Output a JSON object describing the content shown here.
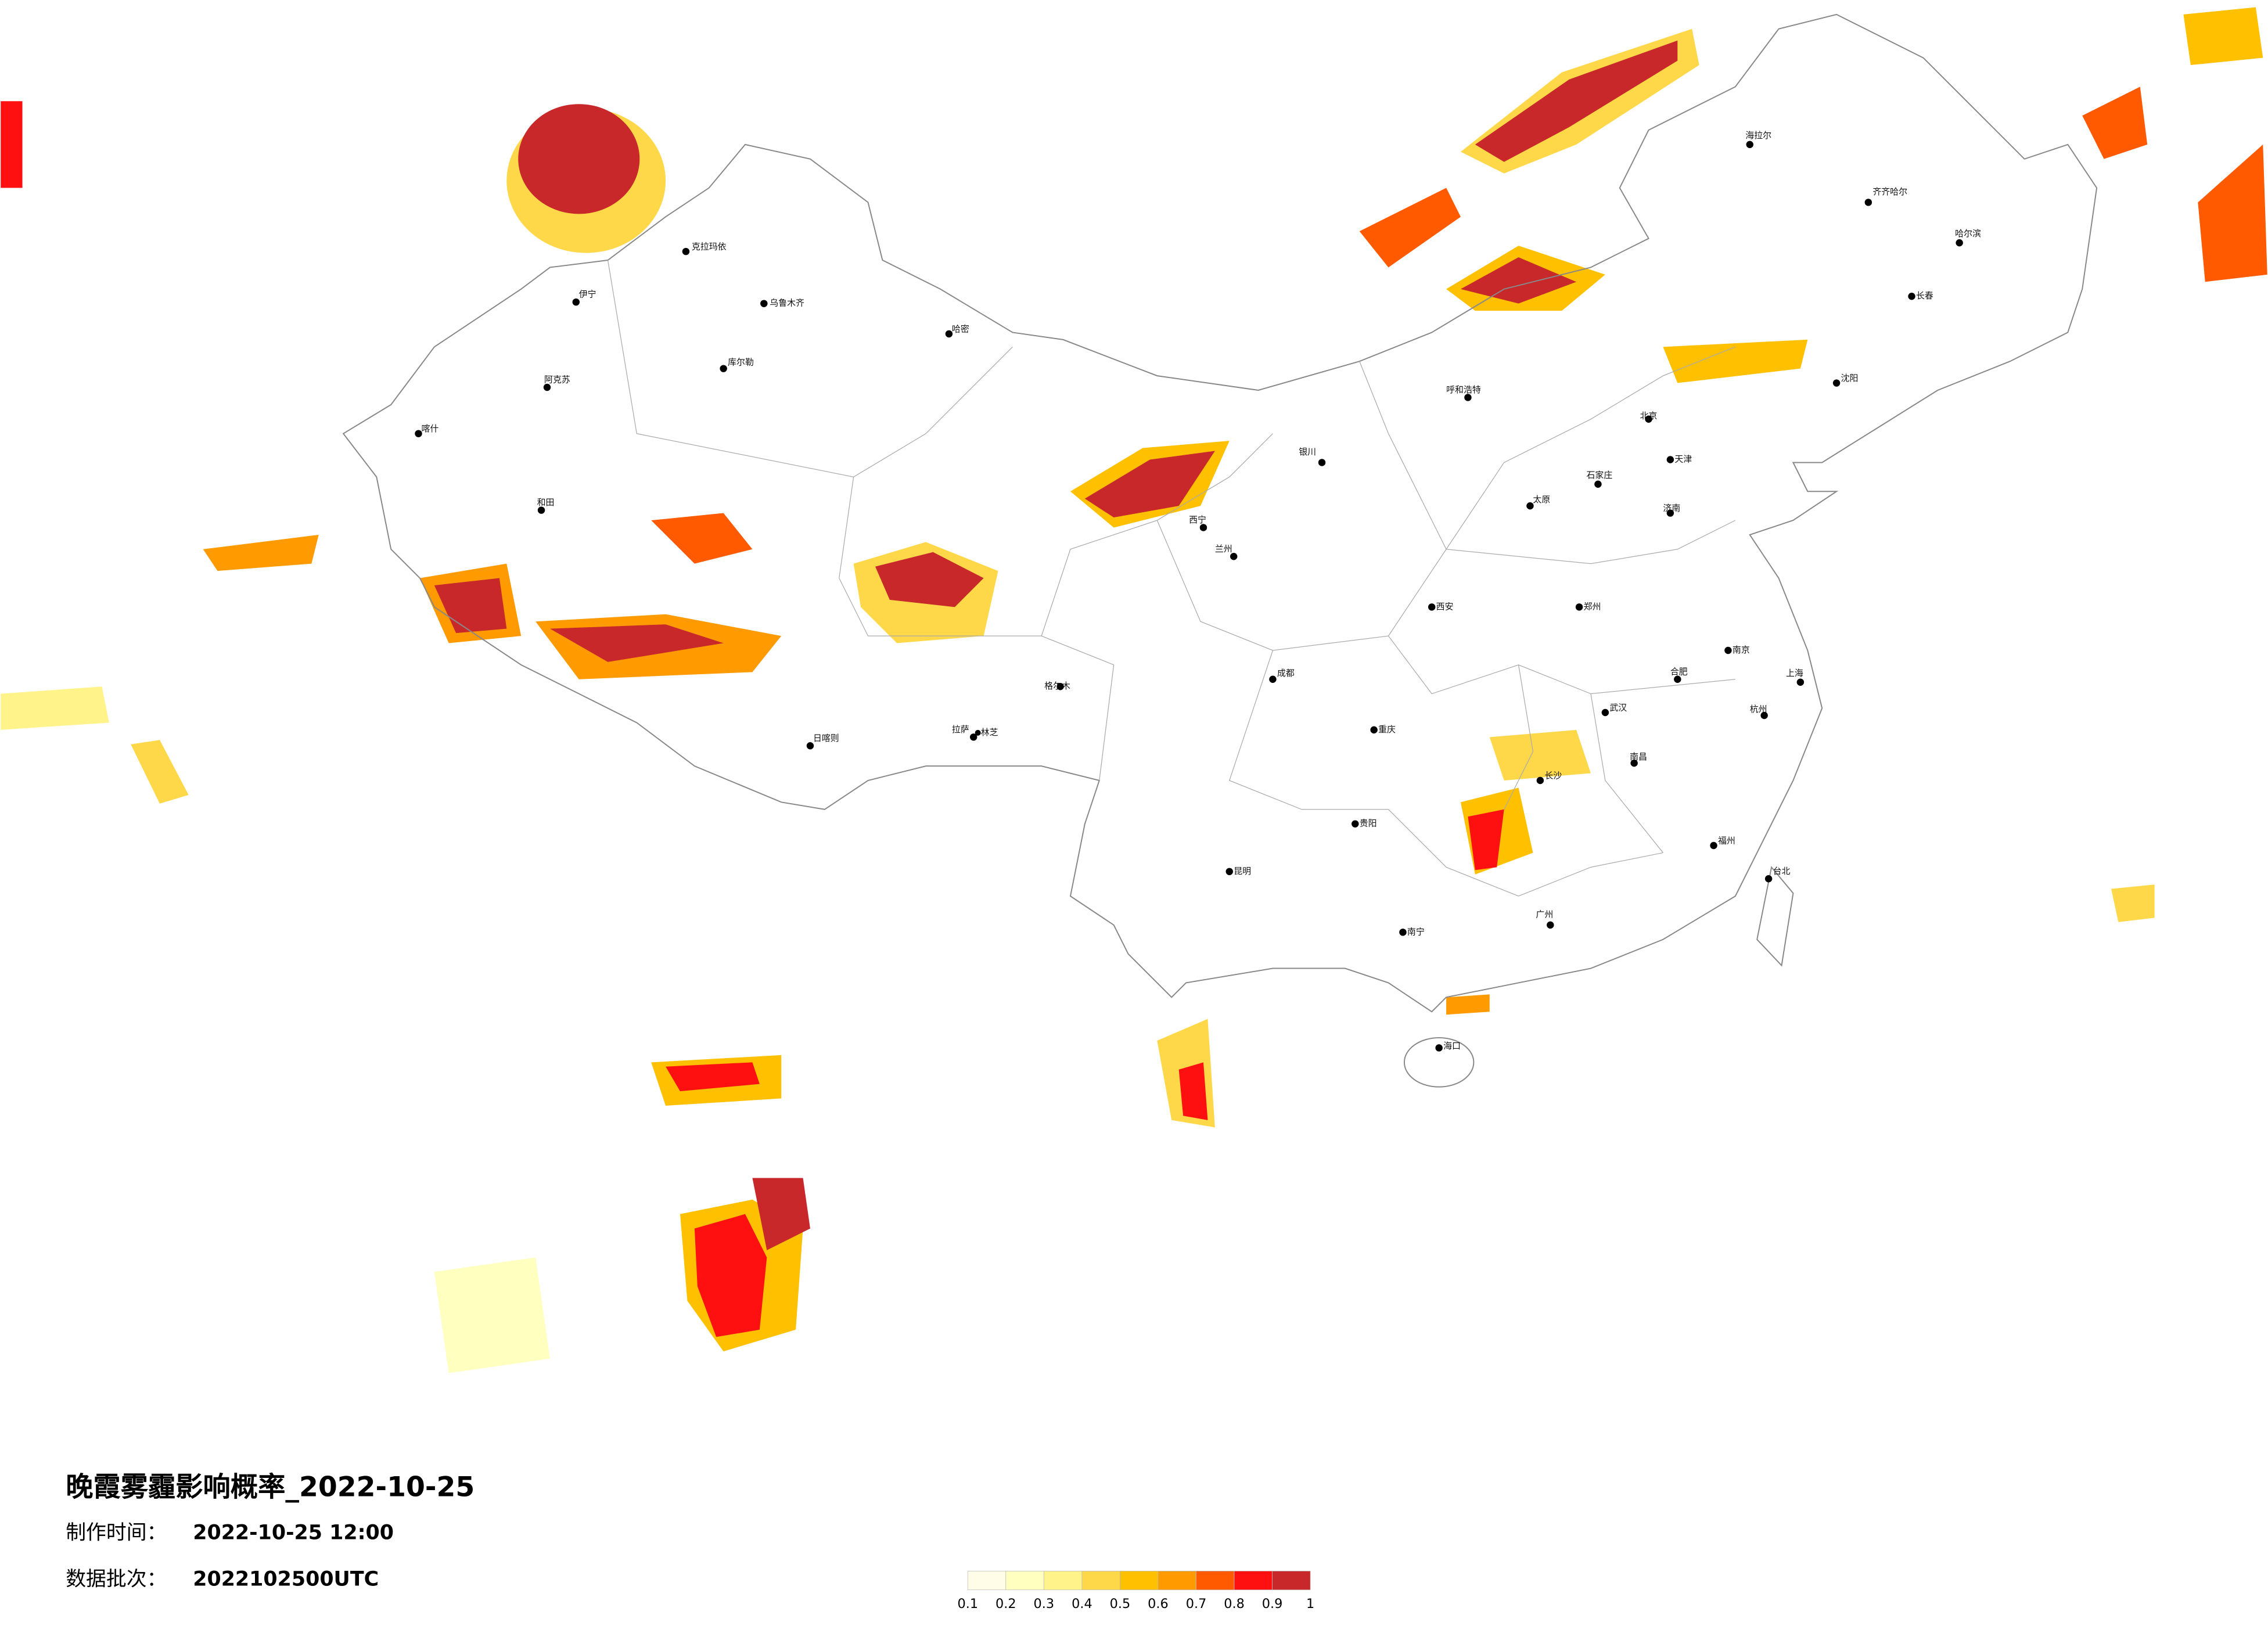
{
  "title": "晚霞雾霾影响概率_2022-10-25",
  "made_label": "制作时间：",
  "made_time": "2022-10-25 12:00",
  "batch_label": "数据批次：",
  "batch": "2022102500UTC",
  "legend": {
    "ticks": [
      0.1,
      0.2,
      0.3,
      0.4,
      0.5,
      0.6,
      0.7,
      0.8,
      0.9,
      1
    ],
    "colors": [
      "#fffde8",
      "#ffffc0",
      "#fff38a",
      "#ffd84a",
      "#ffc000",
      "#ff9a00",
      "#ff5a00",
      "#ff1010",
      "#c8282a"
    ]
  },
  "cities": [
    "乌鲁木齐",
    "克拉玛依",
    "伊宁",
    "库尔勒",
    "阿克苏",
    "喀什",
    "和田",
    "哈密",
    "拉萨",
    "日喀则",
    "林芝",
    "格尔木",
    "西宁",
    "兰州",
    "银川",
    "呼和浩特",
    "北京",
    "天津",
    "石家庄",
    "太原",
    "郑州",
    "西安",
    "成都",
    "重庆",
    "贵阳",
    "昆明",
    "南宁",
    "长沙",
    "武汉",
    "南昌",
    "合肥",
    "南京",
    "上海",
    "杭州",
    "福州",
    "广州",
    "海口",
    "济南",
    "沈阳",
    "长春",
    "哈尔滨",
    "齐齐哈尔",
    "海拉尔",
    "台北"
  ]
}
